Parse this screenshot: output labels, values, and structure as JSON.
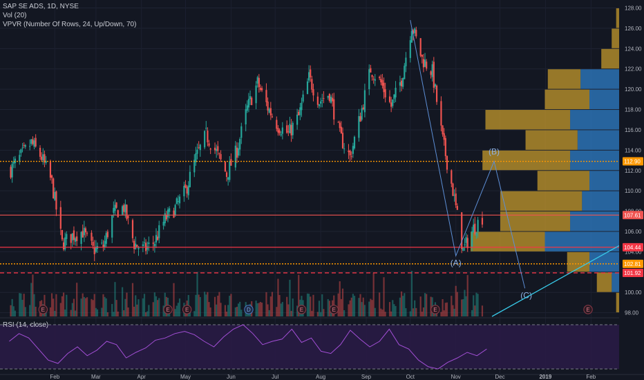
{
  "legend": {
    "symbol": "SAP SE ADS, 1D, NYSE",
    "volume": "Vol (20)",
    "vpvr": "VPVR (Number Of Rows, 24, Up/Down, 70)",
    "rsi": "RSI (14, close)"
  },
  "colors": {
    "background": "#131722",
    "up": "#26a69a",
    "down": "#ef5350",
    "vpvr_up": "#2f7fc8",
    "vpvr_down": "#c49a2c",
    "wave": "#5d8fd6",
    "trendline": "#38c9e8",
    "rsi_line": "#a34fd6",
    "rsi_band": "#2a1b46"
  },
  "chart_data": {
    "type": "candlestick",
    "symbol": "SAP SE ADS",
    "interval": "1D",
    "exchange": "NYSE",
    "ylim": [
      97.5,
      128.5
    ],
    "y_ticks": [
      "128.00",
      "126.00",
      "124.00",
      "122.00",
      "120.00",
      "118.00",
      "116.00",
      "114.00",
      "112.00",
      "110.00",
      "108.00",
      "106.00",
      "104.00",
      "102.00",
      "100.00",
      "98.00"
    ],
    "x_ticks": [
      "Feb",
      "Mar",
      "Apr",
      "May",
      "Jun",
      "Jul",
      "Aug",
      "Sep",
      "Oct",
      "Nov",
      "Dec",
      "2019",
      "Feb"
    ],
    "close_series": [
      {
        "date": "2018-01-02",
        "close": 112.1
      },
      {
        "date": "2018-01-09",
        "close": 113.4
      },
      {
        "date": "2018-01-16",
        "close": 114.7
      },
      {
        "date": "2018-01-23",
        "close": 113.3
      },
      {
        "date": "2018-01-30",
        "close": 110.8
      },
      {
        "date": "2018-02-06",
        "close": 104.8
      },
      {
        "date": "2018-02-13",
        "close": 105.6
      },
      {
        "date": "2018-02-20",
        "close": 106.0
      },
      {
        "date": "2018-02-27",
        "close": 104.2
      },
      {
        "date": "2018-03-06",
        "close": 104.5
      },
      {
        "date": "2018-03-13",
        "close": 107.8
      },
      {
        "date": "2018-03-20",
        "close": 108.4
      },
      {
        "date": "2018-03-27",
        "close": 104.8
      },
      {
        "date": "2018-04-03",
        "close": 104.2
      },
      {
        "date": "2018-04-10",
        "close": 105.0
      },
      {
        "date": "2018-04-17",
        "close": 107.2
      },
      {
        "date": "2018-04-24",
        "close": 108.3
      },
      {
        "date": "2018-05-01",
        "close": 110.0
      },
      {
        "date": "2018-05-08",
        "close": 113.2
      },
      {
        "date": "2018-05-15",
        "close": 115.5
      },
      {
        "date": "2018-05-22",
        "close": 113.8
      },
      {
        "date": "2018-05-29",
        "close": 111.6
      },
      {
        "date": "2018-06-05",
        "close": 114.0
      },
      {
        "date": "2018-06-12",
        "close": 118.1
      },
      {
        "date": "2018-06-19",
        "close": 120.6
      },
      {
        "date": "2018-06-26",
        "close": 118.2
      },
      {
        "date": "2018-07-03",
        "close": 116.4
      },
      {
        "date": "2018-07-10",
        "close": 115.6
      },
      {
        "date": "2018-07-17",
        "close": 117.3
      },
      {
        "date": "2018-07-24",
        "close": 121.1
      },
      {
        "date": "2018-07-31",
        "close": 118.8
      },
      {
        "date": "2018-08-07",
        "close": 119.6
      },
      {
        "date": "2018-08-14",
        "close": 115.4
      },
      {
        "date": "2018-08-21",
        "close": 113.3
      },
      {
        "date": "2018-08-28",
        "close": 117.4
      },
      {
        "date": "2018-09-04",
        "close": 122.0
      },
      {
        "date": "2018-09-11",
        "close": 120.6
      },
      {
        "date": "2018-09-18",
        "close": 118.3
      },
      {
        "date": "2018-09-25",
        "close": 121.0
      },
      {
        "date": "2018-10-02",
        "close": 126.3
      },
      {
        "date": "2018-10-09",
        "close": 123.0
      },
      {
        "date": "2018-10-16",
        "close": 121.7
      },
      {
        "date": "2018-10-23",
        "close": 115.0
      },
      {
        "date": "2018-10-30",
        "close": 110.0
      },
      {
        "date": "2018-11-06",
        "close": 104.1
      },
      {
        "date": "2018-11-13",
        "close": 106.3
      },
      {
        "date": "2018-11-20",
        "close": 107.6
      }
    ],
    "horizontal_levels": [
      {
        "price": 112.9,
        "label": "112.90",
        "color": "#ff9800",
        "style": "dotted"
      },
      {
        "price": 107.61,
        "label": "107.61",
        "color": "#ef5350",
        "style": "solid"
      },
      {
        "price": 104.44,
        "label": "104.44",
        "color": "#f23645",
        "style": "solid"
      },
      {
        "price": 102.81,
        "label": "102.81",
        "color": "#ff9800",
        "style": "dotted"
      },
      {
        "price": 101.92,
        "label": "101.92",
        "color": "#f23645",
        "style": "dashed"
      }
    ],
    "wave_labels": [
      "(A)",
      "(B)",
      "(C)"
    ],
    "wave_points": [
      {
        "label": "(A)",
        "date": "2018-11-01",
        "price": 103.6
      },
      {
        "label": "(B)",
        "date": "2018-11-27",
        "price": 112.9
      },
      {
        "label": "(C)",
        "date": "2018-12-18",
        "price": 100.4
      }
    ],
    "earnings_markers": [
      "E",
      "E",
      "E",
      "D",
      "E",
      "E",
      "E",
      "E"
    ],
    "vpvr_rows": [
      {
        "price_from": 98,
        "price_to": 100,
        "up": 0.0,
        "down": 0.02
      },
      {
        "price_from": 100,
        "price_to": 102,
        "up": 0.05,
        "down": 0.1
      },
      {
        "price_from": 102,
        "price_to": 104,
        "up": 0.2,
        "down": 0.15
      },
      {
        "price_from": 104,
        "price_to": 106,
        "up": 0.5,
        "down": 0.5
      },
      {
        "price_from": 106,
        "price_to": 108,
        "up": 0.33,
        "down": 0.47
      },
      {
        "price_from": 108,
        "price_to": 110,
        "up": 0.25,
        "down": 0.55
      },
      {
        "price_from": 110,
        "price_to": 112,
        "up": 0.2,
        "down": 0.35
      },
      {
        "price_from": 112,
        "price_to": 114,
        "up": 0.33,
        "down": 0.59
      },
      {
        "price_from": 114,
        "price_to": 116,
        "up": 0.28,
        "down": 0.35
      },
      {
        "price_from": 116,
        "price_to": 118,
        "up": 0.33,
        "down": 0.57
      },
      {
        "price_from": 118,
        "price_to": 120,
        "up": 0.2,
        "down": 0.3
      },
      {
        "price_from": 120,
        "price_to": 122,
        "up": 0.26,
        "down": 0.22
      },
      {
        "price_from": 122,
        "price_to": 124,
        "up": 0.0,
        "down": 0.12
      },
      {
        "price_from": 124,
        "price_to": 126,
        "up": 0.0,
        "down": 0.05
      },
      {
        "price_from": 126,
        "price_to": 128,
        "up": 0.0,
        "down": 0.02
      }
    ],
    "rsi": {
      "ylim": [
        30,
        70
      ],
      "ticks": [
        "60.0000",
        "40.0000"
      ],
      "bands": [
        70,
        30
      ],
      "values": [
        55,
        62,
        58,
        48,
        38,
        35,
        44,
        50,
        42,
        47,
        55,
        52,
        40,
        45,
        49,
        56,
        58,
        62,
        64,
        61,
        55,
        50,
        59,
        66,
        70,
        62,
        52,
        55,
        57,
        66,
        54,
        58,
        46,
        44,
        52,
        65,
        57,
        50,
        55,
        66,
        52,
        48,
        38,
        32,
        30,
        36,
        40,
        45,
        42,
        48
      ]
    }
  }
}
